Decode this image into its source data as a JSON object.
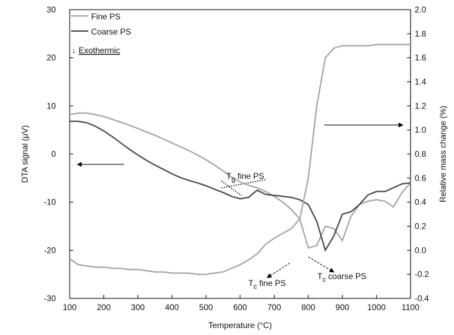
{
  "chart_data": {
    "type": "line",
    "xlabel": "Temperature (°C)",
    "ylabel": "DTA signal (μV)",
    "y2label": "Relative mass change (%)",
    "x": [
      100,
      125,
      150,
      175,
      200,
      225,
      250,
      275,
      300,
      325,
      350,
      375,
      400,
      425,
      450,
      475,
      500,
      525,
      550,
      575,
      600,
      625,
      650,
      675,
      700,
      725,
      750,
      775,
      800,
      825,
      850,
      875,
      900,
      925,
      950,
      975,
      1000,
      1025,
      1050,
      1075,
      1100
    ],
    "series": [
      {
        "name": "Fine PS",
        "color": "#a6a6a6",
        "values": [
          8.2,
          8.5,
          8.5,
          8.2,
          7.8,
          7.2,
          6.6,
          6.0,
          5.3,
          4.6,
          3.9,
          3.1,
          2.3,
          1.5,
          0.7,
          -0.2,
          -1.2,
          -2.3,
          -3.5,
          -4.8,
          -5.8,
          -6.5,
          -7.0,
          -7.8,
          -8.8,
          -10.0,
          -11.5,
          -13.5,
          -19.5,
          -19.0,
          -15.0,
          -15.5,
          -18.0,
          -13.0,
          -10.5,
          -9.8,
          -9.5,
          -9.8,
          -11.0,
          -8.0,
          -6.0
        ]
      },
      {
        "name": "Coarse PS",
        "color": "#4d4d4d",
        "values": [
          6.8,
          6.8,
          6.5,
          5.8,
          4.8,
          3.6,
          2.3,
          1.0,
          -0.2,
          -1.3,
          -2.3,
          -3.2,
          -4.1,
          -4.9,
          -5.5,
          -6.0,
          -6.6,
          -7.3,
          -8.0,
          -8.8,
          -9.3,
          -9.0,
          -7.5,
          -8.4,
          -8.6,
          -8.8,
          -9.0,
          -9.5,
          -10.5,
          -14.0,
          -20.0,
          -17.0,
          -12.5,
          -12.0,
          -10.5,
          -8.5,
          -7.8,
          -7.8,
          -7.0,
          -6.2,
          -6.0
        ]
      },
      {
        "color": "#a6a6a6",
        "axis": "y2",
        "values": [
          -0.07,
          -0.12,
          -0.13,
          -0.14,
          -0.14,
          -0.15,
          -0.15,
          -0.16,
          -0.16,
          -0.17,
          -0.18,
          -0.18,
          -0.19,
          -0.19,
          -0.19,
          -0.2,
          -0.2,
          -0.19,
          -0.18,
          -0.15,
          -0.12,
          -0.08,
          -0.03,
          0.05,
          0.1,
          0.14,
          0.18,
          0.26,
          0.6,
          1.2,
          1.6,
          1.68,
          1.7,
          1.7,
          1.7,
          1.7,
          1.71,
          1.71,
          1.71,
          1.71,
          1.71
        ]
      }
    ],
    "xlim": [
      100,
      1100
    ],
    "xticks": [
      100,
      200,
      300,
      400,
      500,
      600,
      700,
      800,
      900,
      1000,
      1100
    ],
    "ylim": [
      -30,
      30
    ],
    "yticks": [
      -30,
      -20,
      -10,
      0,
      10,
      20,
      30
    ],
    "y2lim": [
      -0.4,
      2.0
    ],
    "y2ticks": [
      -0.4,
      -0.2,
      {
        "value": 0,
        "label": "0.0"
      },
      0.2,
      0.4,
      0.6,
      0.8,
      {
        "value": 1,
        "label": "1.0"
      },
      1.2,
      1.4,
      1.6,
      1.8,
      {
        "value": 2,
        "label": "2.0"
      }
    ],
    "legend": "upper left",
    "legend_note": {
      "arrow": "↓",
      "text": "Exothermic"
    },
    "annotations": [
      {
        "symbol": "T",
        "subscript": "g",
        "text": " fine PS"
      },
      {
        "symbol": "T",
        "subscript": "c",
        "text": " fine PS"
      },
      {
        "symbol": "T",
        "subscript": "c",
        "text": " coarse PS"
      }
    ]
  }
}
